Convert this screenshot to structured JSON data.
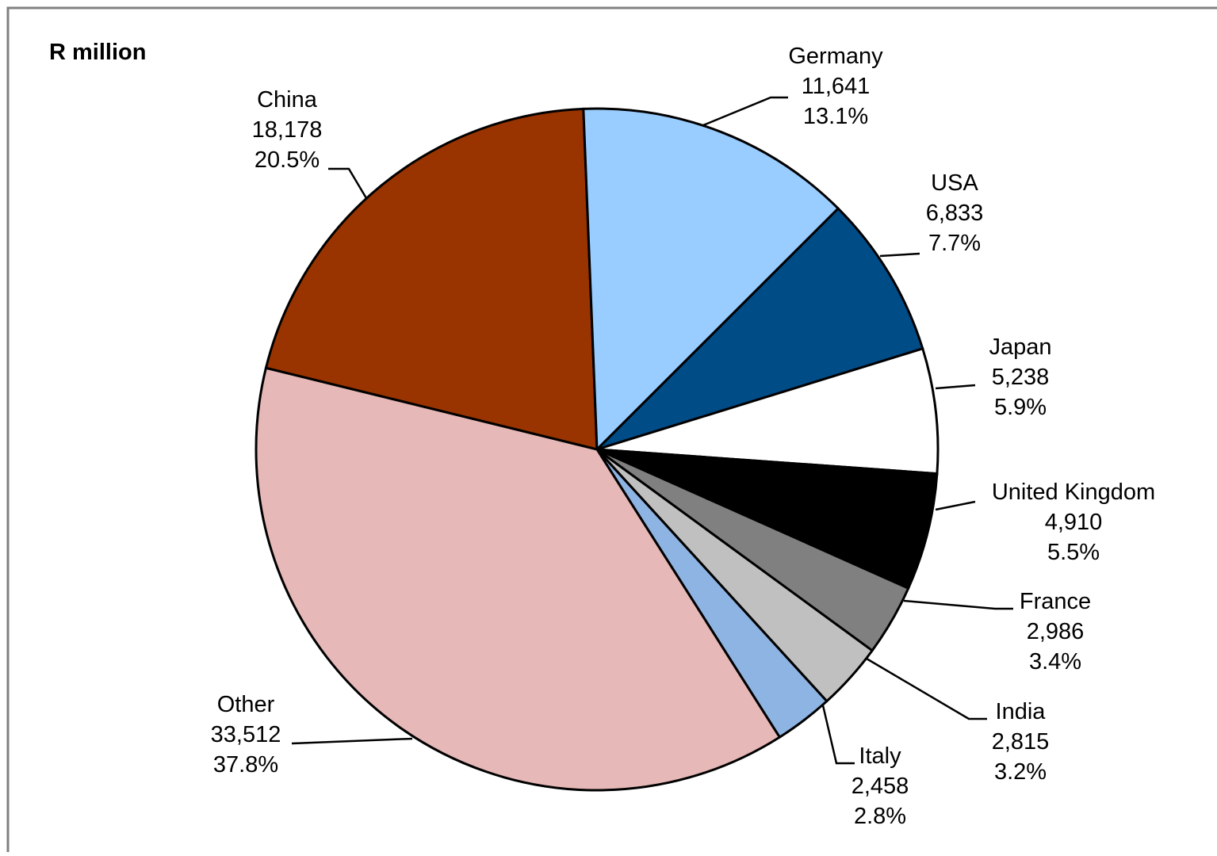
{
  "chart_data": {
    "type": "pie",
    "unit_label": "R million",
    "slices": [
      {
        "name": "China",
        "value": "18,178",
        "percent": "20.5%",
        "numeric": 18178,
        "color": "#993300"
      },
      {
        "name": "Germany",
        "value": "11,641",
        "percent": "13.1%",
        "numeric": 11641,
        "color": "#99ccff"
      },
      {
        "name": "USA",
        "value": "6,833",
        "percent": "7.7%",
        "numeric": 6833,
        "color": "#004c87"
      },
      {
        "name": "Japan",
        "value": "5,238",
        "percent": "5.9%",
        "numeric": 5238,
        "color": "#ffffff"
      },
      {
        "name": "United Kingdom",
        "value": "4,910",
        "percent": "5.5%",
        "numeric": 4910,
        "color": "#000000"
      },
      {
        "name": "France",
        "value": "2,986",
        "percent": "3.4%",
        "numeric": 2986,
        "color": "#808080"
      },
      {
        "name": "India",
        "value": "2,815",
        "percent": "3.2%",
        "numeric": 2815,
        "color": "#c0c0c0"
      },
      {
        "name": "Italy",
        "value": "2,458",
        "percent": "2.8%",
        "numeric": 2458,
        "color": "#8eb4e3"
      },
      {
        "name": "Other",
        "value": "33,512",
        "percent": "37.8%",
        "numeric": 33512,
        "color": "#e6b8b7"
      }
    ]
  }
}
